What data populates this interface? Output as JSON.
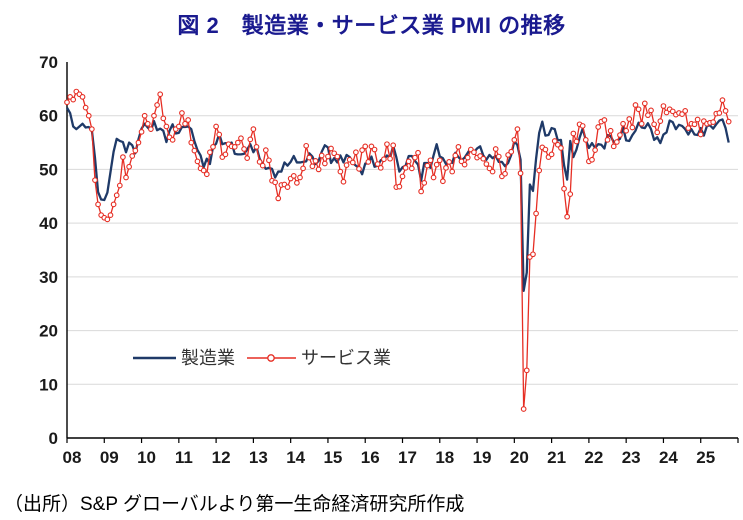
{
  "title": "図 2　製造業・サービス業 PMI の推移",
  "source_note": "（出所）S&P グローバルより第一生命経済研究所作成",
  "legend": {
    "manufacturing": "製造業",
    "services": "サービス業"
  },
  "colors": {
    "title": "#1a1a8f",
    "manufacturing": "#1f3a68",
    "services": "#e62e24",
    "gridline": "#d9d9d9",
    "axis": "#000000",
    "marker_fill": "#ffffff"
  },
  "chart_data": {
    "type": "line",
    "title": "図2 製造業・サービス業PMIの推移",
    "x_unit": "monthly",
    "x_range": [
      "2008-01",
      "2025-10"
    ],
    "x_tick_labels": [
      "08",
      "09",
      "10",
      "11",
      "12",
      "13",
      "14",
      "15",
      "16",
      "17",
      "18",
      "19",
      "20",
      "21",
      "22",
      "23",
      "24",
      "25"
    ],
    "y_ticks": [
      0,
      10,
      20,
      30,
      40,
      50,
      60,
      70
    ],
    "ylim": [
      0,
      70
    ],
    "grid": true,
    "legend_position": "inside-bottom-left",
    "series": [
      {
        "name": "製造業",
        "color": "#1f3a68",
        "marker": "none",
        "values": [
          61.5,
          60.5,
          58.0,
          57.5,
          58.0,
          58.5,
          57.8,
          57.9,
          57.3,
          52.2,
          45.8,
          44.4,
          44.3,
          45.7,
          49.5,
          53.3,
          55.7,
          55.3,
          55.1,
          53.2,
          55.0,
          54.5,
          53.0,
          55.6,
          57.6,
          58.5,
          57.8,
          57.2,
          59.0,
          57.3,
          57.6,
          57.2,
          55.1,
          57.2,
          58.4,
          56.7,
          56.8,
          57.9,
          57.9,
          58.0,
          57.5,
          55.3,
          53.6,
          52.6,
          50.4,
          52.0,
          51.0,
          54.2,
          54.8,
          56.6,
          54.7,
          54.9,
          54.8,
          55.0,
          52.9,
          52.8,
          52.8,
          52.9,
          53.7,
          54.7,
          53.2,
          54.2,
          52.0,
          51.0,
          50.1,
          50.3,
          50.1,
          48.5,
          49.6,
          49.6,
          51.3,
          50.7,
          51.4,
          52.5,
          51.3,
          51.3,
          51.4,
          51.5,
          53.0,
          52.4,
          51.0,
          51.6,
          53.3,
          54.5,
          54.1,
          51.2,
          52.1,
          51.3,
          52.6,
          51.3,
          52.7,
          52.3,
          51.2,
          50.7,
          50.3,
          49.1,
          51.1,
          51.1,
          52.4,
          50.5,
          50.7,
          51.7,
          51.8,
          52.6,
          52.1,
          54.4,
          52.3,
          49.6,
          50.4,
          50.7,
          52.5,
          52.5,
          51.6,
          50.9,
          47.9,
          51.2,
          51.2,
          50.3,
          52.6,
          54.7,
          52.4,
          52.1,
          51.0,
          51.6,
          51.2,
          53.1,
          52.3,
          51.7,
          52.2,
          53.1,
          54.0,
          53.2,
          53.9,
          54.3,
          52.6,
          51.8,
          52.7,
          52.1,
          52.5,
          51.4,
          51.4,
          50.6,
          51.2,
          52.7,
          55.3,
          54.5,
          51.8,
          27.4,
          30.8,
          47.2,
          46.0,
          52.0,
          56.8,
          58.9,
          56.3,
          56.4,
          57.7,
          57.5,
          55.4,
          55.5,
          50.8,
          48.1,
          55.3,
          52.3,
          53.7,
          55.9,
          57.6,
          55.5,
          54.0,
          54.9,
          54.0,
          54.7,
          54.6,
          53.9,
          56.4,
          56.2,
          55.1,
          55.3,
          55.7,
          57.8,
          55.4,
          55.3,
          56.4,
          57.2,
          58.7,
          57.8,
          57.7,
          58.6,
          57.5,
          55.5,
          56.0,
          54.9,
          56.5,
          56.9,
          59.1,
          58.8,
          57.5,
          58.3,
          58.1,
          57.5,
          56.5,
          57.5,
          56.5,
          56.4,
          57.7,
          56.3,
          58.1,
          58.2,
          57.6,
          58.4,
          59.1,
          59.3,
          57.7,
          55.0
        ]
      },
      {
        "name": "サービス業",
        "color": "#e62e24",
        "marker": "circle-open",
        "values": [
          62.5,
          63.5,
          63.0,
          64.5,
          64.0,
          63.5,
          61.5,
          60.0,
          57.5,
          48.0,
          43.5,
          41.5,
          41.0,
          40.7,
          41.5,
          43.5,
          45.2,
          47.0,
          52.3,
          48.5,
          50.5,
          52.5,
          53.5,
          55.0,
          57.0,
          60.0,
          58.5,
          57.5,
          60.0,
          62.0,
          64.0,
          59.5,
          58.0,
          56.0,
          55.5,
          57.5,
          58.0,
          60.5,
          58.5,
          59.2,
          55.0,
          53.5,
          51.5,
          50.2,
          49.8,
          49.1,
          53.2,
          54.2,
          58.0,
          56.5,
          52.3,
          52.8,
          54.7,
          54.3,
          54.2,
          55.0,
          55.8,
          53.8,
          52.1,
          55.6,
          57.5,
          54.2,
          51.4,
          50.7,
          53.6,
          51.7,
          47.9,
          47.6,
          44.6,
          47.1,
          47.2,
          46.7,
          48.3,
          48.8,
          47.5,
          48.5,
          50.2,
          54.4,
          52.2,
          50.6,
          51.6,
          50.0,
          52.6,
          51.1,
          52.4,
          53.9,
          53.0,
          52.4,
          49.6,
          47.7,
          50.8,
          51.8,
          51.3,
          53.2,
          50.1,
          53.6,
          54.3,
          51.4,
          54.3,
          53.7,
          51.0,
          50.3,
          51.9,
          54.7,
          52.0,
          54.5,
          46.7,
          46.8,
          48.7,
          50.3,
          51.5,
          50.2,
          52.2,
          53.1,
          45.9,
          47.5,
          50.7,
          51.7,
          48.5,
          50.9,
          51.7,
          47.8,
          50.3,
          51.4,
          49.6,
          52.6,
          54.2,
          51.5,
          50.9,
          52.2,
          53.7,
          53.2,
          52.2,
          52.5,
          52.0,
          51.0,
          50.2,
          49.6,
          53.8,
          52.4,
          48.7,
          49.2,
          52.7,
          53.3,
          55.5,
          57.5,
          49.3,
          5.4,
          12.6,
          33.7,
          34.2,
          41.8,
          49.8,
          54.1,
          53.7,
          52.3,
          52.8,
          55.3,
          54.6,
          54.0,
          46.4,
          41.2,
          45.4,
          56.7,
          55.2,
          58.4,
          58.1,
          55.5,
          51.5,
          51.8,
          53.6,
          57.9,
          58.9,
          59.2,
          55.5,
          57.2,
          54.3,
          55.1,
          56.4,
          58.5,
          57.2,
          59.4,
          57.8,
          62.0,
          61.2,
          58.5,
          62.3,
          60.1,
          61.0,
          58.4,
          56.9,
          59.0,
          61.8,
          60.6,
          61.2,
          60.8,
          60.2,
          60.5,
          60.3,
          60.9,
          57.7,
          58.5,
          58.4,
          59.3,
          56.5,
          59.0,
          58.5,
          58.7,
          58.8,
          60.4,
          60.5,
          62.9,
          60.9,
          58.9
        ]
      }
    ]
  }
}
